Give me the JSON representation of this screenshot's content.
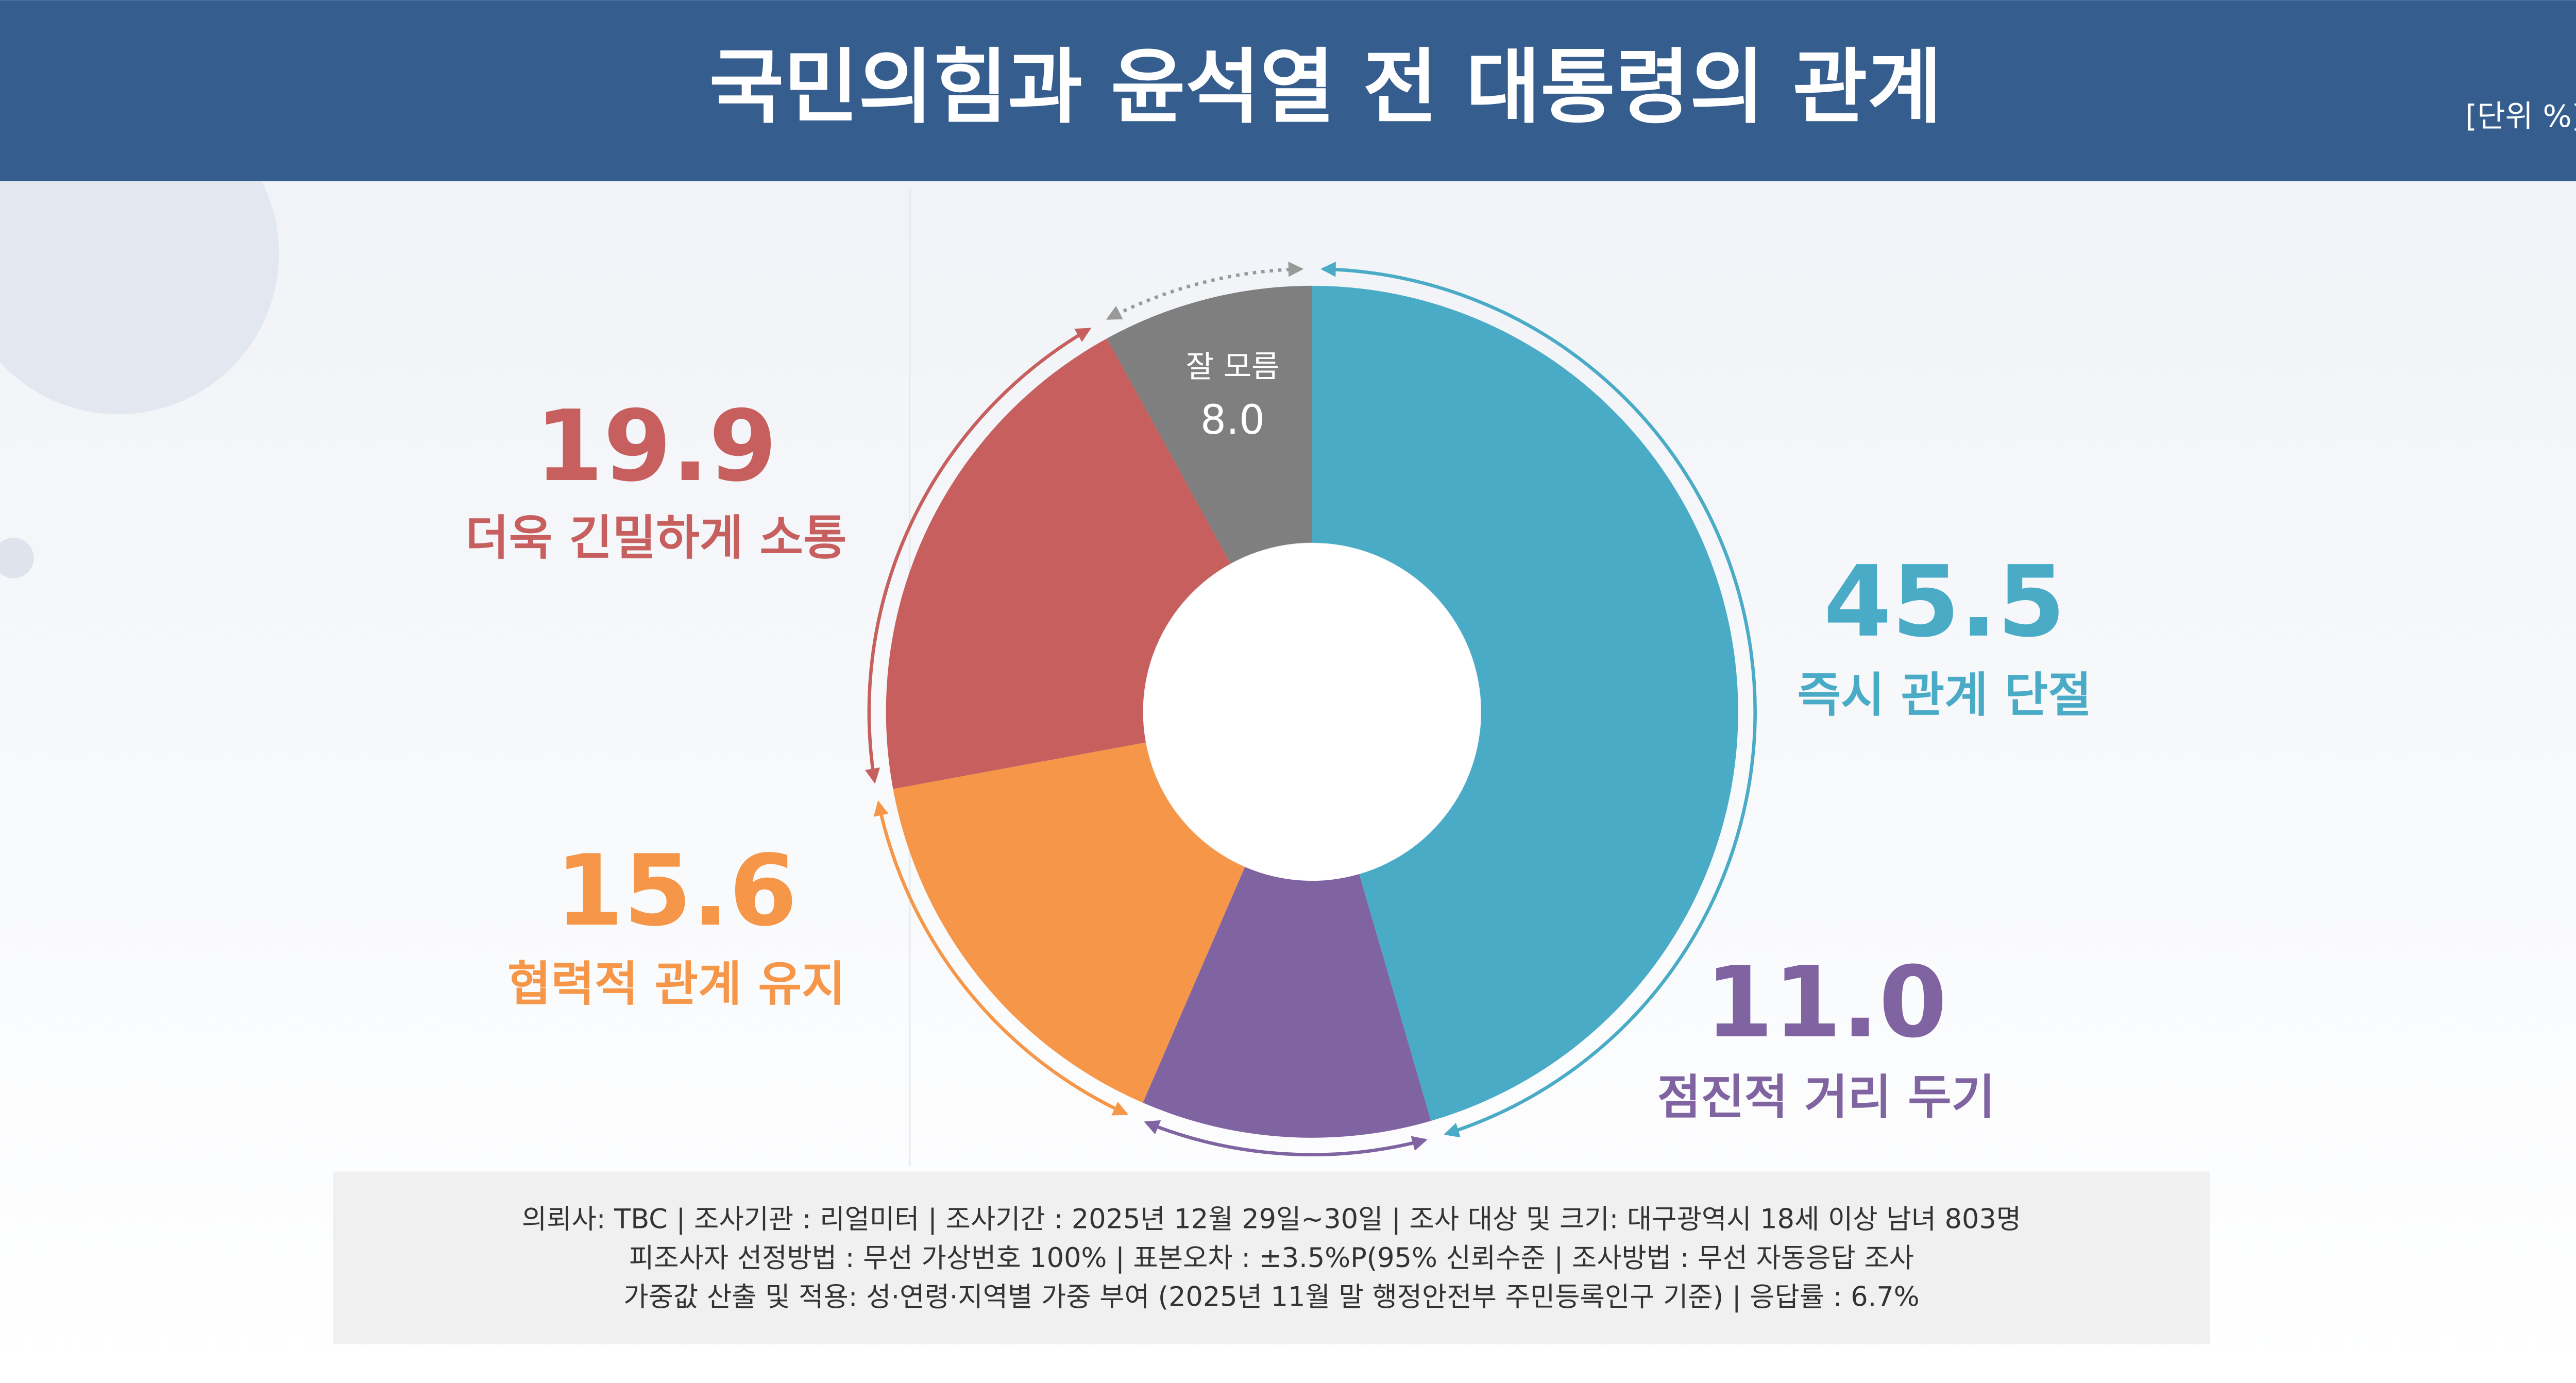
{
  "chart_data": {
    "type": "pie",
    "donut": true,
    "title": "국민의힘과 윤석열 전 대통령의 관계",
    "unit_label": "[단위 %]",
    "categories": [
      "즉시 관계 단절",
      "점진적 거리 두기",
      "협력적 관계 유지",
      "더욱 긴밀하게 소통",
      "잘 모름"
    ],
    "values": [
      45.5,
      11.0,
      15.6,
      19.9,
      8.0
    ],
    "value_labels": [
      "45.5",
      "11.0",
      "15.6",
      "19.9",
      "8.0"
    ],
    "colors": [
      "#4aabc6",
      "#8064a2",
      "#f59648",
      "#c65f5e",
      "#7f7f7f"
    ],
    "notes": [
      "의뢰사: TBC | 조사기관 : 리얼미터  |  조사기간 : 2025년 12월 29일~30일 | 조사 대상 및 크기: 대구광역시 18세 이상 남녀 803명",
      "피조사자 선정방법 : 무선 가상번호 100% | 표본오차 : ±3.5%P(95% 신뢰수준 | 조사방법 : 무선 자동응답 조사",
      "가중값 산출 및 적용: 성·연령·지역별 가중 부여 (2025년 11월 말 행정안전부 주민등록인구 기준) | 응답률 : 6.7%"
    ]
  }
}
